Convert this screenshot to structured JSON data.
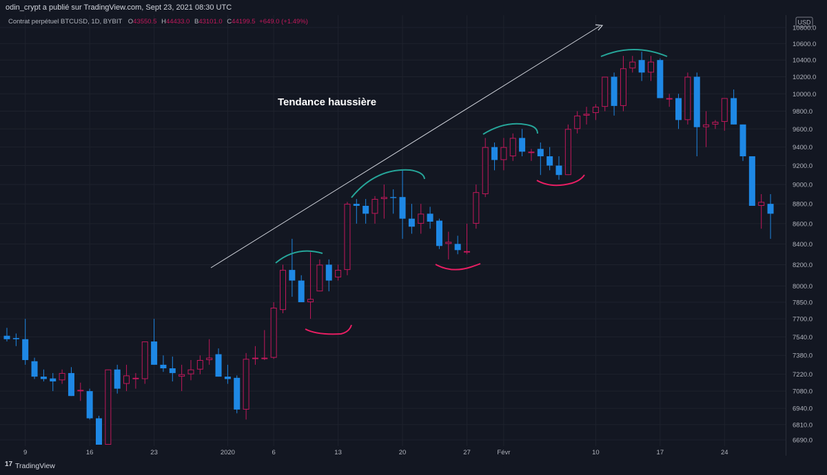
{
  "header": {
    "publisher_line": "odin_crypt a  publié sur TradingView.com, Sept 23, 2021 08:30 UTC"
  },
  "legend": {
    "symbol": "Contrat perpétuel BTCUSD, 1D, BYBIT",
    "o_label": "O",
    "o_value": "43550.5",
    "h_label": "H",
    "h_value": "44433.0",
    "b_label": "B",
    "b_value": "43101.0",
    "c_label": "C",
    "c_value": "44199.5",
    "change": "+649.0 (+1.49%)"
  },
  "currency_badge": "USD",
  "annotation_text": "Tendance haussière",
  "footer": {
    "brand": "TradingView",
    "logo_glyph": "17"
  },
  "colors": {
    "background": "#131722",
    "up": "#c2185b",
    "down": "#1e88e5",
    "grid": "#1e222d",
    "text": "#b2b5be",
    "resistance_arc": "#26a69a",
    "support_arc": "#e91e63",
    "trend_arrow": "#d1d4dc"
  },
  "chart_data": {
    "type": "candlestick",
    "price_axis": {
      "ticks": [
        "6690.0",
        "6810.0",
        "6940.0",
        "7080.0",
        "7220.0",
        "7380.0",
        "7540.0",
        "7700.0",
        "7850.0",
        "8000.0",
        "8200.0",
        "8400.0",
        "8600.0",
        "8800.0",
        "9000.0",
        "9200.0",
        "9400.0",
        "9600.0",
        "9800.0",
        "10000.0",
        "10200.0",
        "10400.0",
        "10600.0",
        "10800.0"
      ],
      "scale": "log"
    },
    "time_axis": {
      "labels": [
        {
          "index": 2,
          "text": "9"
        },
        {
          "index": 9,
          "text": "16"
        },
        {
          "index": 16,
          "text": "23"
        },
        {
          "index": 24,
          "text": "2020"
        },
        {
          "index": 29,
          "text": "6"
        },
        {
          "index": 36,
          "text": "13"
        },
        {
          "index": 43,
          "text": "20"
        },
        {
          "index": 50,
          "text": "27"
        },
        {
          "index": 54,
          "text": "Févr"
        },
        {
          "index": 64,
          "text": "10"
        },
        {
          "index": 71,
          "text": "17"
        },
        {
          "index": 78,
          "text": "24"
        }
      ]
    },
    "candles": [
      {
        "o": 7550,
        "h": 7620,
        "l": 7500,
        "c": 7520
      },
      {
        "o": 7530,
        "h": 7570,
        "l": 7460,
        "c": 7520
      },
      {
        "o": 7520,
        "h": 7700,
        "l": 7300,
        "c": 7340
      },
      {
        "o": 7330,
        "h": 7360,
        "l": 7180,
        "c": 7200
      },
      {
        "o": 7200,
        "h": 7260,
        "l": 7160,
        "c": 7180
      },
      {
        "o": 7185,
        "h": 7230,
        "l": 7080,
        "c": 7160
      },
      {
        "o": 7170,
        "h": 7260,
        "l": 7140,
        "c": 7230
      },
      {
        "o": 7230,
        "h": 7280,
        "l": 7040,
        "c": 7040
      },
      {
        "o": 7080,
        "h": 7150,
        "l": 7000,
        "c": 7090
      },
      {
        "o": 7080,
        "h": 7100,
        "l": 6850,
        "c": 6860
      },
      {
        "o": 6860,
        "h": 6880,
        "l": 6620,
        "c": 6620
      },
      {
        "o": 6600,
        "h": 7260,
        "l": 6600,
        "c": 7260
      },
      {
        "o": 7260,
        "h": 7300,
        "l": 7060,
        "c": 7100
      },
      {
        "o": 7140,
        "h": 7300,
        "l": 7080,
        "c": 7210
      },
      {
        "o": 7190,
        "h": 7230,
        "l": 7100,
        "c": 7190
      },
      {
        "o": 7180,
        "h": 7500,
        "l": 7140,
        "c": 7500
      },
      {
        "o": 7500,
        "h": 7700,
        "l": 7300,
        "c": 7300
      },
      {
        "o": 7300,
        "h": 7380,
        "l": 7240,
        "c": 7270
      },
      {
        "o": 7270,
        "h": 7370,
        "l": 7160,
        "c": 7230
      },
      {
        "o": 7200,
        "h": 7300,
        "l": 7080,
        "c": 7220
      },
      {
        "o": 7220,
        "h": 7340,
        "l": 7170,
        "c": 7260
      },
      {
        "o": 7260,
        "h": 7380,
        "l": 7220,
        "c": 7340
      },
      {
        "o": 7340,
        "h": 7520,
        "l": 7300,
        "c": 7360
      },
      {
        "o": 7390,
        "h": 7440,
        "l": 7200,
        "c": 7200
      },
      {
        "o": 7200,
        "h": 7300,
        "l": 7140,
        "c": 7180
      },
      {
        "o": 7190,
        "h": 7210,
        "l": 6900,
        "c": 6930
      },
      {
        "o": 6930,
        "h": 7400,
        "l": 6850,
        "c": 7350
      },
      {
        "o": 7350,
        "h": 7460,
        "l": 7300,
        "c": 7360
      },
      {
        "o": 7360,
        "h": 7600,
        "l": 7340,
        "c": 7360
      },
      {
        "o": 7360,
        "h": 7850,
        "l": 7350,
        "c": 7800
      },
      {
        "o": 7780,
        "h": 8200,
        "l": 7750,
        "c": 8150
      },
      {
        "o": 8150,
        "h": 8450,
        "l": 7900,
        "c": 8050
      },
      {
        "o": 8050,
        "h": 8100,
        "l": 7850,
        "c": 7850
      },
      {
        "o": 7850,
        "h": 8320,
        "l": 7700,
        "c": 7880
      },
      {
        "o": 7950,
        "h": 8250,
        "l": 7950,
        "c": 8200
      },
      {
        "o": 8200,
        "h": 8250,
        "l": 7950,
        "c": 8050
      },
      {
        "o": 8080,
        "h": 8200,
        "l": 8050,
        "c": 8150
      },
      {
        "o": 8150,
        "h": 8820,
        "l": 8100,
        "c": 8800
      },
      {
        "o": 8800,
        "h": 8850,
        "l": 8600,
        "c": 8780
      },
      {
        "o": 8780,
        "h": 8850,
        "l": 8600,
        "c": 8700
      },
      {
        "o": 8700,
        "h": 8880,
        "l": 8600,
        "c": 8850
      },
      {
        "o": 8850,
        "h": 9000,
        "l": 8650,
        "c": 8870
      },
      {
        "o": 8870,
        "h": 8950,
        "l": 8700,
        "c": 8860
      },
      {
        "o": 8870,
        "h": 9150,
        "l": 8450,
        "c": 8650
      },
      {
        "o": 8650,
        "h": 8800,
        "l": 8500,
        "c": 8570
      },
      {
        "o": 8600,
        "h": 8800,
        "l": 8500,
        "c": 8700
      },
      {
        "o": 8700,
        "h": 8770,
        "l": 8550,
        "c": 8620
      },
      {
        "o": 8630,
        "h": 8650,
        "l": 8350,
        "c": 8380
      },
      {
        "o": 8400,
        "h": 8520,
        "l": 8250,
        "c": 8420
      },
      {
        "o": 8400,
        "h": 8480,
        "l": 8300,
        "c": 8340
      },
      {
        "o": 8330,
        "h": 8600,
        "l": 8300,
        "c": 8330
      },
      {
        "o": 8600,
        "h": 9000,
        "l": 8550,
        "c": 8920
      },
      {
        "o": 8900,
        "h": 9500,
        "l": 8870,
        "c": 9400
      },
      {
        "o": 9400,
        "h": 9450,
        "l": 9150,
        "c": 9260
      },
      {
        "o": 9260,
        "h": 9500,
        "l": 9150,
        "c": 9400
      },
      {
        "o": 9300,
        "h": 9550,
        "l": 9250,
        "c": 9500
      },
      {
        "o": 9500,
        "h": 9600,
        "l": 9300,
        "c": 9350
      },
      {
        "o": 9350,
        "h": 9380,
        "l": 9250,
        "c": 9350
      },
      {
        "o": 9380,
        "h": 9450,
        "l": 9100,
        "c": 9300
      },
      {
        "o": 9300,
        "h": 9400,
        "l": 9150,
        "c": 9200
      },
      {
        "o": 9200,
        "h": 9300,
        "l": 9050,
        "c": 9100
      },
      {
        "o": 9100,
        "h": 9650,
        "l": 9100,
        "c": 9600
      },
      {
        "o": 9600,
        "h": 9800,
        "l": 9550,
        "c": 9750
      },
      {
        "o": 9750,
        "h": 9850,
        "l": 9650,
        "c": 9770
      },
      {
        "o": 9780,
        "h": 9880,
        "l": 9700,
        "c": 9850
      },
      {
        "o": 9850,
        "h": 10200,
        "l": 9800,
        "c": 10200
      },
      {
        "o": 10200,
        "h": 10250,
        "l": 9750,
        "c": 9860
      },
      {
        "o": 9860,
        "h": 10450,
        "l": 9800,
        "c": 10300
      },
      {
        "o": 10300,
        "h": 10450,
        "l": 10250,
        "c": 10380
      },
      {
        "o": 10400,
        "h": 10500,
        "l": 10150,
        "c": 10250
      },
      {
        "o": 10250,
        "h": 10450,
        "l": 10150,
        "c": 10380
      },
      {
        "o": 10400,
        "h": 10420,
        "l": 9950,
        "c": 9950
      },
      {
        "o": 9950,
        "h": 10000,
        "l": 9850,
        "c": 9950
      },
      {
        "o": 9950,
        "h": 10000,
        "l": 9600,
        "c": 9700
      },
      {
        "o": 9700,
        "h": 10250,
        "l": 9650,
        "c": 10200
      },
      {
        "o": 10200,
        "h": 10250,
        "l": 9300,
        "c": 9620
      },
      {
        "o": 9620,
        "h": 9800,
        "l": 9400,
        "c": 9650
      },
      {
        "o": 9650,
        "h": 9700,
        "l": 9600,
        "c": 9680
      },
      {
        "o": 9680,
        "h": 9950,
        "l": 9580,
        "c": 9950
      },
      {
        "o": 9950,
        "h": 10050,
        "l": 9650,
        "c": 9650
      },
      {
        "o": 9650,
        "h": 9650,
        "l": 9250,
        "c": 9300
      },
      {
        "o": 9300,
        "h": 9300,
        "l": 8780,
        "c": 8780
      },
      {
        "o": 8780,
        "h": 8900,
        "l": 8550,
        "c": 8820
      },
      {
        "o": 8800,
        "h": 8900,
        "l": 8450,
        "c": 8700
      }
    ]
  }
}
